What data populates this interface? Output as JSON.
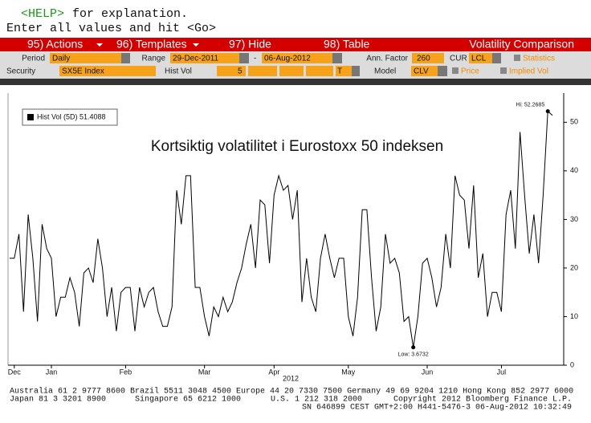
{
  "ui": {
    "help_key": "<HELP>",
    "help_text": "for explanation.",
    "prompt": "Enter all values and hit <Go>",
    "menu": [
      "95) Actions",
      "96) Templates",
      "97) Hide",
      "98) Table"
    ],
    "screen_title": "Volatility Comparison",
    "period_label": "Period",
    "period": "Daily",
    "range_label": "Range",
    "range_start": "29-Dec-2011",
    "range_sep": "-",
    "range_end": "06-Aug-2012",
    "ann_factor_label": "Ann. Factor",
    "ann_factor": "260",
    "cur_label": "CUR",
    "cur": "LCL",
    "statistics": "Statistics",
    "security_label": "Security",
    "security": "SX5E Index",
    "hist_vol_label": "Hist Vol",
    "hist_vol": "5",
    "hist_vol_unit": "T",
    "model_label": "Model",
    "model": "CLV",
    "price": "Price",
    "implied_vol": "Implied Vol",
    "footer": [
      "Australia 61 2 9777 8600 Brazil 5511 3048 4500 Europe 44 20 7330 7500 Germany 49 69 9204 1210 Hong Kong 852 2977 6000",
      "Japan 81 3 3201 8900",
      "Singapore 65 6212 1000",
      "U.S. 1 212 318 2000",
      "Copyright 2012 Bloomberg Finance L.P.",
      "SN 646899 CEST GMT+2:00 H441-5476-3 06-Aug-2012 10:32:49"
    ]
  },
  "chart_data": {
    "type": "line",
    "title": "Kortsiktig volatilitet i Eurostoxx 50 indeksen",
    "x_label": "2012",
    "categories": [
      null,
      "Dec",
      null,
      null,
      null,
      null,
      null,
      null,
      null,
      "Jan",
      null,
      null,
      null,
      null,
      null,
      null,
      null,
      null,
      null,
      null,
      null,
      null,
      null,
      null,
      null,
      "Feb",
      null,
      null,
      null,
      null,
      null,
      null,
      null,
      null,
      null,
      null,
      null,
      null,
      null,
      null,
      null,
      null,
      "Mar",
      null,
      null,
      null,
      null,
      null,
      null,
      null,
      null,
      null,
      null,
      null,
      null,
      null,
      null,
      "Apr",
      null,
      null,
      null,
      null,
      null,
      null,
      null,
      null,
      null,
      null,
      null,
      null,
      null,
      null,
      null,
      "May",
      null,
      null,
      null,
      null,
      null,
      null,
      null,
      null,
      null,
      null,
      null,
      null,
      null,
      null,
      null,
      null,
      "Jun",
      null,
      null,
      null,
      null,
      null,
      null,
      null,
      null,
      null,
      null,
      null,
      null,
      null,
      null,
      null,
      "Jul",
      null,
      null,
      null,
      null,
      null,
      null,
      null,
      null,
      null,
      null,
      null
    ],
    "series": [
      {
        "name": "Hist Vol (5D) 51.4088",
        "color": "#000000",
        "values": [
          22,
          22,
          27,
          11,
          31,
          22,
          9,
          29,
          24,
          22,
          10,
          14,
          14,
          18,
          15,
          8,
          19,
          20,
          17,
          26,
          20,
          10,
          16,
          7,
          15,
          16,
          16,
          7,
          16,
          12,
          15,
          16,
          11,
          8,
          8,
          12,
          36,
          29,
          39,
          39,
          16,
          16,
          10,
          6,
          12,
          10,
          14,
          11,
          13,
          17,
          20,
          25,
          29,
          20,
          34,
          33,
          21,
          35,
          39,
          36,
          37,
          30,
          36,
          13,
          22,
          14,
          11,
          22,
          27,
          22,
          18,
          22,
          22,
          10,
          6,
          14,
          32,
          32,
          18,
          7,
          12,
          27,
          21,
          22,
          19,
          9,
          10,
          3.6732,
          10,
          21,
          22,
          18,
          12,
          16,
          27,
          20,
          39,
          35,
          34,
          24,
          37,
          18,
          23,
          10,
          15,
          15,
          11,
          31,
          36,
          24,
          48,
          35,
          23,
          31,
          21,
          35,
          52.2685,
          51.4088
        ]
      }
    ],
    "annotations": [
      "Hi: 52.2685",
      "Low: 3.6732"
    ],
    "ylim": [
      0,
      56
    ],
    "yticks": [
      0,
      10,
      20,
      30,
      40,
      50
    ],
    "grid": false
  }
}
